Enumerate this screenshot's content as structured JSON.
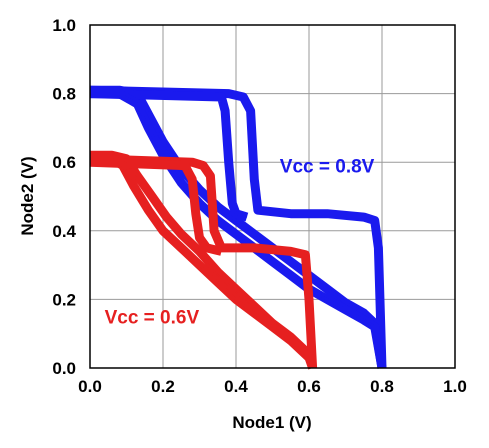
{
  "chart_data": {
    "type": "line",
    "title": "",
    "xlabel": "Node1 (V)",
    "ylabel": "Node2 (V)",
    "xlim": [
      0.0,
      1.0
    ],
    "ylim": [
      0.0,
      1.0
    ],
    "x_ticks": [
      "0.0",
      "0.2",
      "0.4",
      "0.6",
      "0.8",
      "1.0"
    ],
    "y_ticks": [
      "0.0",
      "0.2",
      "0.4",
      "0.6",
      "0.8",
      "1.0"
    ],
    "grid": true,
    "legend": "none",
    "annotations": [
      {
        "text": "Vcc = 0.8V",
        "color": "#1a1aee",
        "x": 0.52,
        "y": 0.57
      },
      {
        "text": "Vcc = 0.6V",
        "color": "#e62020",
        "x": 0.04,
        "y": 0.13
      }
    ],
    "series": [
      {
        "color": "#1a1aee",
        "curves": [
          {
            "x": [
              0.0,
              0.08,
              0.13,
              0.16,
              0.2,
              0.25,
              0.3,
              0.35,
              0.4,
              0.45,
              0.5,
              0.55,
              0.6,
              0.65,
              0.7,
              0.75,
              0.78,
              0.8
            ],
            "y": [
              0.81,
              0.81,
              0.8,
              0.74,
              0.66,
              0.58,
              0.52,
              0.47,
              0.43,
              0.39,
              0.35,
              0.31,
              0.27,
              0.23,
              0.19,
              0.16,
              0.13,
              0.0
            ]
          },
          {
            "x": [
              0.0,
              0.38,
              0.42,
              0.44,
              0.45,
              0.46,
              0.55,
              0.65,
              0.75,
              0.78,
              0.79,
              0.8
            ],
            "y": [
              0.81,
              0.8,
              0.79,
              0.75,
              0.55,
              0.46,
              0.45,
              0.45,
              0.44,
              0.43,
              0.35,
              0.0
            ]
          },
          {
            "x": [
              0.0,
              0.36,
              0.37,
              0.38,
              0.39,
              0.4,
              0.43
            ],
            "y": [
              0.8,
              0.79,
              0.75,
              0.6,
              0.48,
              0.45,
              0.44
            ]
          },
          {
            "x": [
              0.0,
              0.08,
              0.13,
              0.16,
              0.2,
              0.25,
              0.3,
              0.35,
              0.4,
              0.45,
              0.5,
              0.55,
              0.6,
              0.65,
              0.7,
              0.75,
              0.78,
              0.8
            ],
            "y": [
              0.8,
              0.8,
              0.77,
              0.7,
              0.62,
              0.54,
              0.48,
              0.43,
              0.39,
              0.35,
              0.31,
              0.27,
              0.23,
              0.2,
              0.17,
              0.14,
              0.12,
              0.0
            ]
          }
        ]
      },
      {
        "color": "#e62020",
        "curves": [
          {
            "x": [
              0.0,
              0.06,
              0.1,
              0.13,
              0.17,
              0.21,
              0.25,
              0.3,
              0.35,
              0.4,
              0.45,
              0.5,
              0.55,
              0.6,
              0.61
            ],
            "y": [
              0.62,
              0.62,
              0.61,
              0.56,
              0.5,
              0.44,
              0.39,
              0.34,
              0.28,
              0.23,
              0.18,
              0.13,
              0.09,
              0.04,
              0.0
            ]
          },
          {
            "x": [
              0.0,
              0.28,
              0.31,
              0.33,
              0.34,
              0.36,
              0.45,
              0.55,
              0.59,
              0.6,
              0.61
            ],
            "y": [
              0.61,
              0.6,
              0.59,
              0.56,
              0.4,
              0.35,
              0.35,
              0.34,
              0.33,
              0.2,
              0.0
            ]
          },
          {
            "x": [
              0.0,
              0.26,
              0.28,
              0.29,
              0.3,
              0.32,
              0.36
            ],
            "y": [
              0.6,
              0.59,
              0.55,
              0.45,
              0.38,
              0.35,
              0.34
            ]
          },
          {
            "x": [
              0.0,
              0.06,
              0.09,
              0.12,
              0.16,
              0.2,
              0.25,
              0.3,
              0.35,
              0.4,
              0.45,
              0.5,
              0.55,
              0.6,
              0.61
            ],
            "y": [
              0.61,
              0.61,
              0.59,
              0.53,
              0.46,
              0.4,
              0.35,
              0.3,
              0.25,
              0.2,
              0.16,
              0.12,
              0.08,
              0.03,
              0.0
            ]
          }
        ]
      }
    ]
  }
}
